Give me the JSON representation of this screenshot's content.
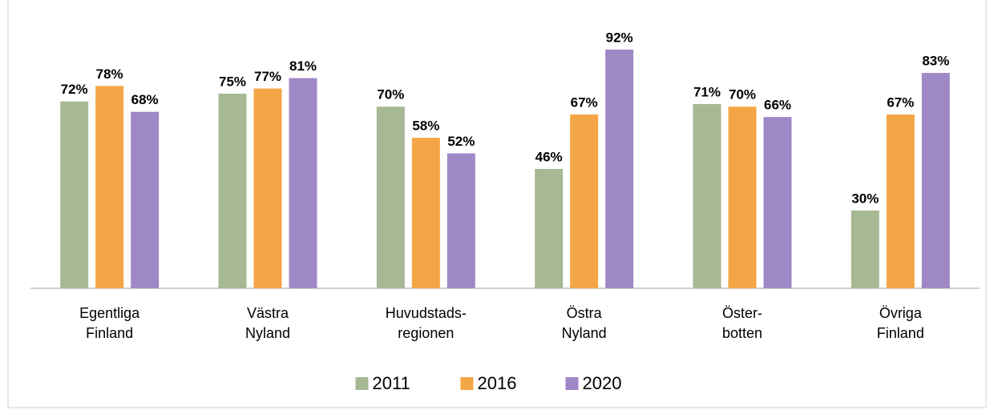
{
  "chart_data": {
    "type": "bar",
    "categories": [
      [
        "Egentliga",
        "Finland"
      ],
      [
        "Västra",
        "Nyland"
      ],
      [
        "Huvudstads-",
        "regionen"
      ],
      [
        "Östra",
        "Nyland"
      ],
      [
        "Öster-",
        "botten"
      ],
      [
        "Övriga",
        "Finland"
      ]
    ],
    "series": [
      {
        "name": "2011",
        "color": "#a6b894",
        "values": [
          72,
          75,
          70,
          46,
          71,
          30
        ],
        "value_labels": [
          "72%",
          "75%",
          "70%",
          "46%",
          "71%",
          "30%"
        ]
      },
      {
        "name": "2016",
        "color": "#f4a646",
        "values": [
          78,
          77,
          58,
          67,
          70,
          67
        ],
        "value_labels": [
          "78%",
          "77%",
          "58%",
          "67%",
          "70%",
          "67%"
        ]
      },
      {
        "name": "2020",
        "color": "#9f88c6",
        "values": [
          68,
          81,
          52,
          92,
          66,
          83
        ],
        "value_labels": [
          "68%",
          "81%",
          "52%",
          "92%",
          "66%",
          "83%"
        ]
      }
    ],
    "ylim": [
      0,
      100
    ],
    "legend": "bottom"
  }
}
